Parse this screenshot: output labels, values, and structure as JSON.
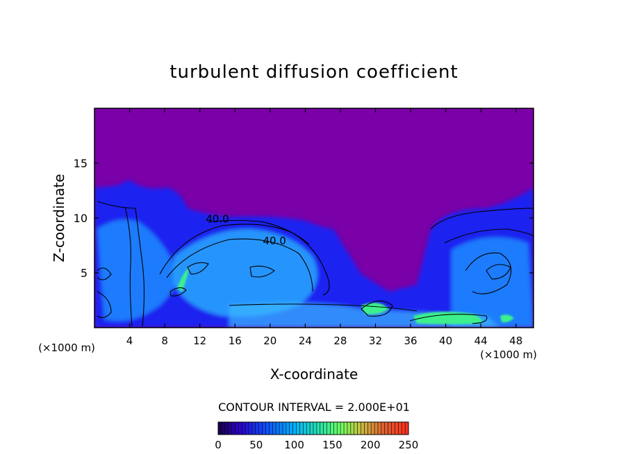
{
  "chart_data": {
    "type": "heatmap",
    "title": "turbulent diffusion coefficient",
    "xlabel": "X-coordinate",
    "ylabel": "Z-coordinate",
    "x_unit": "(×1000 m)",
    "y_unit": "(×1000 m)",
    "xlim": [
      0,
      50
    ],
    "ylim": [
      0,
      20
    ],
    "x_ticks": [
      4,
      8,
      12,
      16,
      20,
      24,
      28,
      32,
      36,
      40,
      44,
      48
    ],
    "y_ticks": [
      5,
      10,
      15
    ],
    "contour_labels": [
      {
        "text": "40.0",
        "x": 14.0,
        "z": 9.6
      },
      {
        "text": "40.0",
        "x": 20.5,
        "z": 7.6
      }
    ],
    "contour_interval_text": "CONTOUR INTERVAL = 2.000E+01",
    "colorbar": {
      "min": 0,
      "max": 250,
      "tick_labels": [
        "0",
        "50",
        "100",
        "150",
        "200",
        "250"
      ],
      "tick_values": [
        0,
        50,
        100,
        150,
        200,
        250
      ]
    },
    "colors": {
      "background_field": "#7a00a8",
      "low": "#1a1aff",
      "mid": "#00aaff",
      "high": "#44ff88"
    }
  }
}
